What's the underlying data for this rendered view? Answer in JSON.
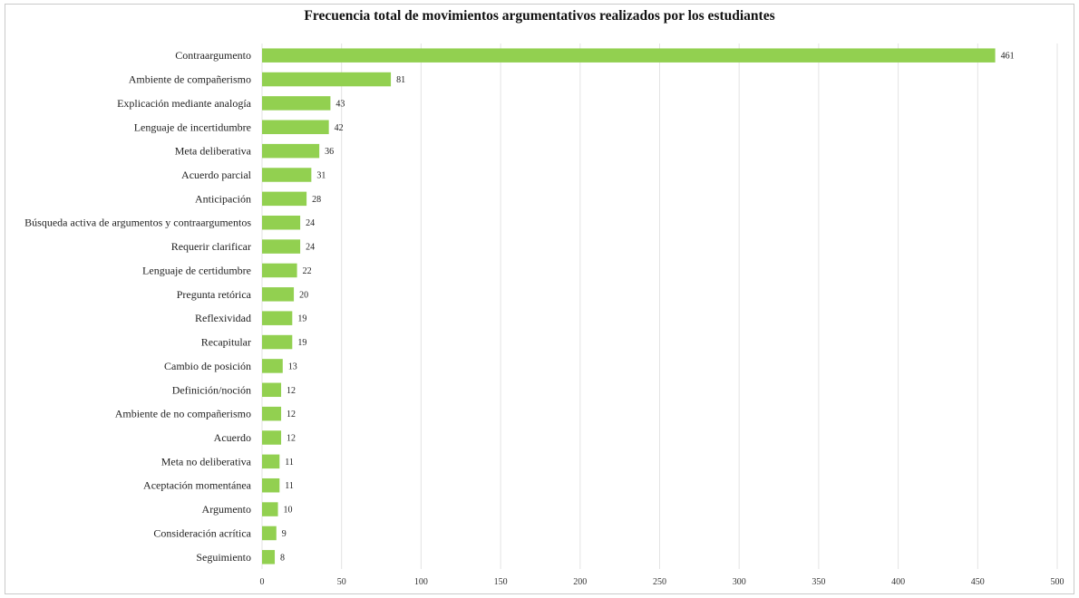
{
  "chart_data": {
    "type": "bar",
    "orientation": "horizontal",
    "title": "Frecuencia total de movimientos argumentativos realizados por los estudiantes",
    "categories": [
      "Contraargumento",
      "Ambiente de compañerismo",
      "Explicación mediante analogía",
      "Lenguaje de incertidumbre",
      "Meta deliberativa",
      "Acuerdo parcial",
      "Anticipación",
      "Búsqueda activa de argumentos y contraargumentos",
      "Requerir clarificar",
      "Lenguaje de certidumbre",
      "Pregunta retórica",
      "Reflexividad",
      "Recapitular",
      "Cambio de posición",
      "Definición/noción",
      "Ambiente de no compañerismo",
      "Acuerdo",
      "Meta no deliberativa",
      "Aceptación momentánea",
      "Argumento",
      "Consideración acrítica",
      "Seguimiento"
    ],
    "values": [
      461,
      81,
      43,
      42,
      36,
      31,
      28,
      24,
      24,
      22,
      20,
      19,
      19,
      13,
      12,
      12,
      12,
      11,
      11,
      10,
      9,
      8
    ],
    "xlim": [
      0,
      500
    ],
    "xticks": [
      0,
      50,
      100,
      150,
      200,
      250,
      300,
      350,
      400,
      450,
      500
    ],
    "grid": "vertical",
    "legend": "none",
    "bar_color": "#92d050",
    "grid_color": "#e3e3e3",
    "data_labels": true
  }
}
